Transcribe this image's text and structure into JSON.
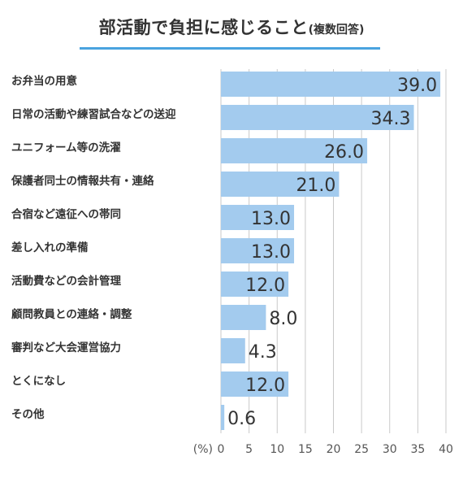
{
  "chart_data": {
    "type": "bar",
    "orientation": "horizontal",
    "title": "部活動で負担に感じること",
    "subtitle": "(複数回答)",
    "unit_label": "(%)",
    "categories": [
      "お弁当の用意",
      "日常の活動や練習試合などの送迎",
      "ユニフォーム等の洗濯",
      "保護者同士の情報共有・連絡",
      "合宿など遠征への帯同",
      "差し入れの準備",
      "活動費などの会計管理",
      "顧問教員との連絡・調整",
      "審判など大会運営協力",
      "とくになし",
      "その他"
    ],
    "values": [
      39.0,
      34.3,
      26.0,
      21.0,
      13.0,
      13.0,
      12.0,
      8.0,
      4.3,
      12.0,
      0.6
    ],
    "value_labels": [
      "39.0",
      "34.3",
      "26.0",
      "21.0",
      "13.0",
      "13.0",
      "12.0",
      "8.0",
      "4.3",
      "12.0",
      "0.6"
    ],
    "xlim": [
      0,
      40
    ],
    "xticks": [
      "0",
      "5",
      "10",
      "15",
      "20",
      "25",
      "30",
      "35",
      "40"
    ],
    "grid": true,
    "colors": {
      "bar": "#a3cbee",
      "grid": "#c9c9c9",
      "title_rule": "#4aa3df"
    }
  }
}
